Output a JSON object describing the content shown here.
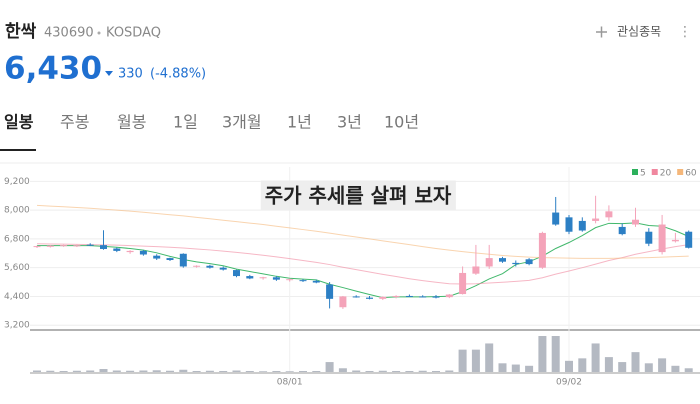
{
  "header": {
    "name": "한싹",
    "code": "430690",
    "market": "KOSDAQ",
    "watch": "관심종목",
    "price": "6,430",
    "change": "330",
    "change_pct": "(-4.88%)"
  },
  "tabs": [
    "일봉",
    "주봉",
    "월봉",
    "1일",
    "3개월",
    "1년",
    "3년",
    "10년"
  ],
  "chart_data": {
    "type": "candlestick",
    "annotation": "주가 추세를 살펴 보자",
    "up_color": "#f4a3b9",
    "down_color": "#2c7fc4",
    "volume_color": "#b4b9c2",
    "grid": true,
    "ylim": [
      3000,
      9800
    ],
    "yticks": [
      {
        "value": 3200,
        "label": "3,200"
      },
      {
        "value": 4400,
        "label": "4,400"
      },
      {
        "value": 5600,
        "label": "5,600"
      },
      {
        "value": 6800,
        "label": "6,800"
      },
      {
        "value": 8000,
        "label": "8,000"
      },
      {
        "value": 9200,
        "label": "9,200"
      }
    ],
    "categories": [
      null,
      null,
      null,
      null,
      null,
      null,
      null,
      null,
      null,
      null,
      null,
      null,
      null,
      null,
      null,
      null,
      null,
      null,
      null,
      "08/01",
      null,
      null,
      null,
      null,
      null,
      null,
      null,
      null,
      null,
      null,
      null,
      null,
      null,
      null,
      null,
      null,
      null,
      null,
      null,
      null,
      "09/02",
      null,
      null,
      null,
      null,
      null,
      null,
      null,
      null,
      null
    ],
    "open": [
      6480,
      6470,
      6500,
      6510,
      6560,
      6540,
      6400,
      6250,
      6300,
      6100,
      6000,
      6180,
      5650,
      5680,
      5600,
      5500,
      5250,
      5160,
      5200,
      5100,
      5080,
      5050,
      4900,
      3950,
      4400,
      4350,
      4300,
      4380,
      4420,
      4400,
      4400,
      4370,
      4500,
      5350,
      5650,
      6000,
      5800,
      5950,
      5600,
      7900,
      7700,
      7550,
      7550,
      7700,
      7300,
      7400,
      7100,
      6250,
      6700,
      7100
    ],
    "high": [
      6520,
      6540,
      6560,
      6560,
      6620,
      7160,
      6440,
      6330,
      6340,
      6160,
      6020,
      6200,
      5700,
      5720,
      5650,
      5520,
      5300,
      5220,
      5250,
      5150,
      5130,
      5100,
      5000,
      4420,
      4450,
      4420,
      4400,
      4450,
      4480,
      4450,
      4460,
      4500,
      5650,
      6550,
      6550,
      6050,
      5900,
      6000,
      7100,
      8550,
      7800,
      7700,
      8600,
      8200,
      7450,
      8100,
      7250,
      7800,
      7050,
      7150
    ],
    "low": [
      6420,
      6440,
      6470,
      6460,
      6500,
      6350,
      6250,
      6180,
      6100,
      5920,
      5880,
      5600,
      5600,
      5560,
      5480,
      5200,
      5120,
      5100,
      5050,
      5020,
      5000,
      4950,
      3900,
      3880,
      4350,
      4280,
      4250,
      4320,
      4380,
      4360,
      4320,
      4330,
      4480,
      5300,
      5550,
      5800,
      5650,
      5700,
      5550,
      7350,
      7000,
      7100,
      7450,
      7550,
      6950,
      7300,
      6500,
      6150,
      6650,
      6400
    ],
    "close": [
      6500,
      6520,
      6540,
      6530,
      6520,
      6380,
      6300,
      6300,
      6150,
      5980,
      5920,
      5650,
      5680,
      5600,
      5520,
      5250,
      5150,
      5200,
      5100,
      5120,
      5050,
      4980,
      4300,
      4400,
      4380,
      4300,
      4380,
      4420,
      4400,
      4390,
      4350,
      4480,
      5380,
      5650,
      6000,
      5850,
      5750,
      5750,
      7050,
      7400,
      7100,
      7150,
      7650,
      7950,
      7000,
      7600,
      6600,
      7400,
      6760,
      6430
    ],
    "volume": [
      60,
      50,
      40,
      50,
      60,
      120,
      60,
      50,
      60,
      70,
      50,
      90,
      40,
      50,
      40,
      60,
      40,
      30,
      40,
      30,
      40,
      40,
      400,
      150,
      60,
      40,
      50,
      40,
      40,
      50,
      40,
      60,
      900,
      900,
      1150,
      350,
      300,
      250,
      1450,
      1450,
      450,
      550,
      1150,
      600,
      400,
      800,
      350,
      550,
      250,
      150
    ],
    "series": [
      {
        "name": "5",
        "color": "#2cb05c",
        "values": [
          6520,
          6520,
          6520,
          6520,
          6520,
          6490,
          6450,
          6400,
          6330,
          6220,
          6070,
          5940,
          5840,
          5770,
          5680,
          5540,
          5440,
          5340,
          5240,
          5160,
          5120,
          5090,
          4910,
          4770,
          4620,
          4480,
          4350,
          4380,
          4380,
          4380,
          4390,
          4410,
          4600,
          4850,
          5130,
          5350,
          5730,
          5850,
          6080,
          6400,
          6650,
          6940,
          7270,
          7450,
          7440,
          7470,
          7360,
          7330,
          7140,
          6900
        ]
      },
      {
        "name": "20",
        "color": "#f0879f",
        "values": [
          6600,
          6590,
          6580,
          6570,
          6560,
          6550,
          6540,
          6520,
          6500,
          6480,
          6450,
          6420,
          6380,
          6340,
          6290,
          6240,
          6180,
          6120,
          6050,
          5980,
          5900,
          5820,
          5730,
          5620,
          5520,
          5420,
          5320,
          5230,
          5140,
          5060,
          4990,
          4930,
          4920,
          4930,
          4960,
          4990,
          5030,
          5070,
          5180,
          5330,
          5460,
          5600,
          5750,
          5900,
          6020,
          6160,
          6270,
          6380,
          6480,
          6560
        ]
      },
      {
        "name": "60",
        "color": "#f5b77a",
        "values": [
          8200,
          8170,
          8140,
          8110,
          8080,
          8040,
          8000,
          7960,
          7910,
          7860,
          7810,
          7760,
          7700,
          7640,
          7580,
          7520,
          7460,
          7400,
          7330,
          7260,
          7190,
          7120,
          7040,
          6960,
          6880,
          6800,
          6720,
          6640,
          6560,
          6480,
          6400,
          6330,
          6270,
          6210,
          6160,
          6110,
          6070,
          6040,
          6020,
          6010,
          6000,
          5990,
          5990,
          5990,
          6000,
          6010,
          6020,
          6040,
          6060,
          6080
        ]
      }
    ]
  }
}
